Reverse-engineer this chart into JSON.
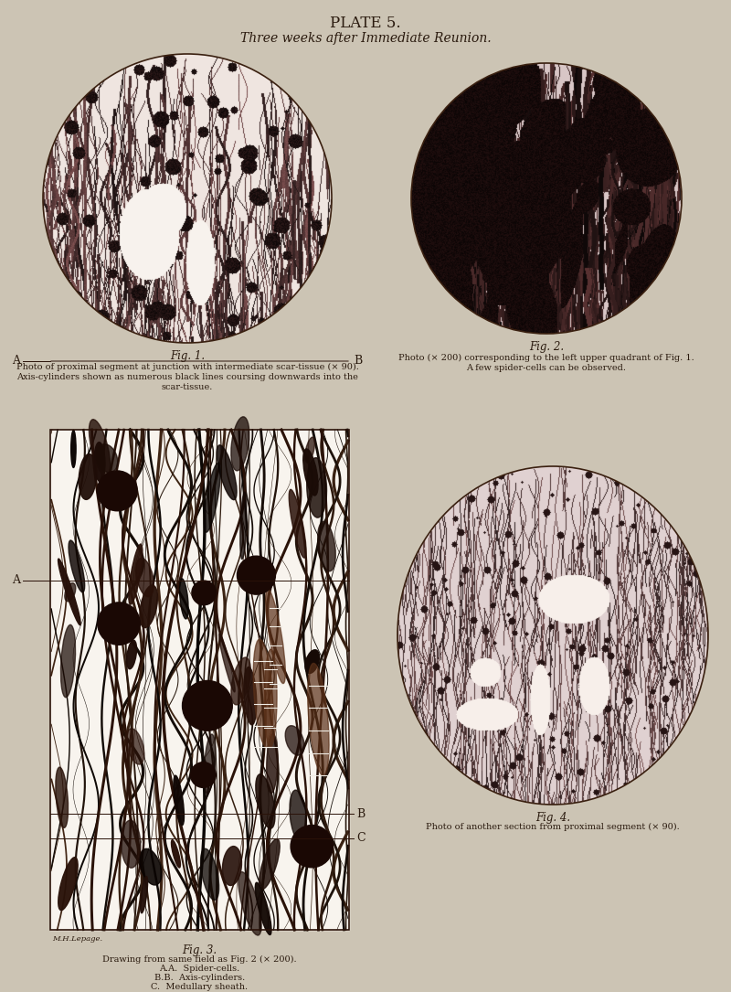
{
  "bg_color": "#ccc4b4",
  "title": "PLATE 5.",
  "subtitle": "Three weeks after Immediate Reunion.",
  "title_fontsize": 12,
  "subtitle_fontsize": 10,
  "text_color": "#2a1a0e",
  "fig1_caption": "Fig. 1.",
  "fig2_caption": "Fig. 2.",
  "fig3_caption": "Fig. 3.",
  "fig4_caption": "Fig. 4.",
  "fig1_text1": "Photo of proximal segment at junction with intermediate scar-tissue (× 90).",
  "fig1_text2": "Axis-cylinders shown as numerous black lines coursing downwards into the",
  "fig1_text3": "scar-tissue.",
  "fig2_text1": "Photo (× 200) corresponding to the left upper quadrant of Fig. 1.",
  "fig2_text2": "A few spider-cells can be observed.",
  "fig3_text1": "Drawing from same field as Fig. 2 (× 200).",
  "fig3_text2": "A.A.  Spider-cells.",
  "fig3_text3": "B.B.  Axis-cylinders.",
  "fig3_text4": "C.  Medullary sheath.",
  "fig4_text": "Photo of another section from proximal segment (× 90).",
  "signature": "M.H.Lepage."
}
